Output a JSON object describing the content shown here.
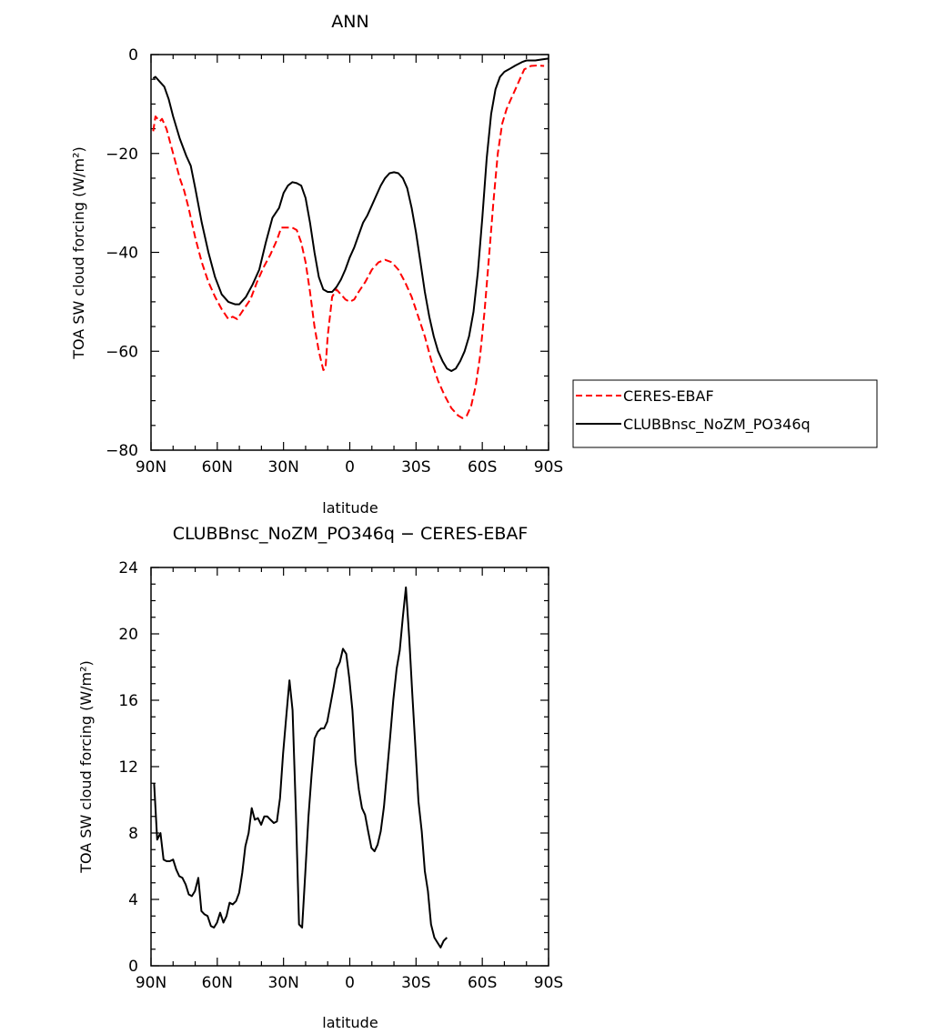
{
  "chart_data": [
    {
      "type": "line",
      "title": "ANN",
      "xlabel": "latitude",
      "ylabel": "TOA SW cloud forcing (W/m²)",
      "xlim": [
        90,
        -90
      ],
      "ylim": [
        -80,
        0
      ],
      "x_tick_values": [
        90,
        60,
        30,
        0,
        -30,
        -60,
        -90
      ],
      "x_tick_labels": [
        "90N",
        "60N",
        "30N",
        "0",
        "30S",
        "60S",
        "90S"
      ],
      "y_ticks": [
        0,
        -20,
        -40,
        -60,
        -80
      ],
      "y_tick_labels": [
        "0",
        "−20",
        "−40",
        "−60",
        "−80"
      ],
      "legend_position": "right",
      "series": [
        {
          "name": "CERES-EBAF",
          "color": "#ff0000",
          "dash": "dashed",
          "points": [
            [
              89,
              -15.5
            ],
            [
              88,
              -12.5
            ],
            [
              86,
              -13.5
            ],
            [
              85,
              -13
            ],
            [
              83,
              -15
            ],
            [
              80,
              -20
            ],
            [
              77,
              -25
            ],
            [
              75,
              -27.5
            ],
            [
              73,
              -31
            ],
            [
              70,
              -37
            ],
            [
              67,
              -42
            ],
            [
              64,
              -46
            ],
            [
              61,
              -49
            ],
            [
              58,
              -51.5
            ],
            [
              55,
              -53.5
            ],
            [
              53,
              -53
            ],
            [
              51,
              -53.5
            ],
            [
              48,
              -51.5
            ],
            [
              45,
              -49.5
            ],
            [
              42,
              -46
            ],
            [
              39,
              -43
            ],
            [
              36,
              -40.5
            ],
            [
              33,
              -37.5
            ],
            [
              31,
              -35
            ],
            [
              28,
              -35
            ],
            [
              26,
              -35
            ],
            [
              24,
              -35.5
            ],
            [
              22,
              -38
            ],
            [
              20,
              -42
            ],
            [
              18,
              -48
            ],
            [
              16,
              -55
            ],
            [
              14,
              -60
            ],
            [
              12,
              -63.8
            ],
            [
              11,
              -63.5
            ],
            [
              10,
              -57
            ],
            [
              8,
              -49
            ],
            [
              6,
              -47.5
            ],
            [
              4,
              -48.5
            ],
            [
              2,
              -49.5
            ],
            [
              0,
              -50
            ],
            [
              -2,
              -49.5
            ],
            [
              -4,
              -48
            ],
            [
              -7,
              -46
            ],
            [
              -10,
              -43.5
            ],
            [
              -13,
              -42
            ],
            [
              -16,
              -41.5
            ],
            [
              -19,
              -42
            ],
            [
              -22,
              -43.5
            ],
            [
              -25,
              -46
            ],
            [
              -28,
              -49
            ],
            [
              -31,
              -53
            ],
            [
              -34,
              -57
            ],
            [
              -37,
              -62
            ],
            [
              -40,
              -66
            ],
            [
              -43,
              -69
            ],
            [
              -46,
              -71.5
            ],
            [
              -49,
              -73
            ],
            [
              -51,
              -73.5
            ],
            [
              -53,
              -73
            ],
            [
              -55,
              -71
            ],
            [
              -57,
              -67
            ],
            [
              -59,
              -61
            ],
            [
              -61,
              -52
            ],
            [
              -63,
              -41
            ],
            [
              -65,
              -30
            ],
            [
              -67,
              -20
            ],
            [
              -69,
              -14
            ],
            [
              -71,
              -11
            ],
            [
              -73,
              -9
            ],
            [
              -75,
              -7
            ],
            [
              -77,
              -5
            ],
            [
              -79,
              -3
            ],
            [
              -82,
              -2.3
            ],
            [
              -85,
              -2.2
            ],
            [
              -88,
              -2.3
            ]
          ]
        },
        {
          "name": "CLUBBnsc_NoZM_PO346q",
          "color": "#000000",
          "dash": "solid",
          "points": [
            [
              89,
              -4.8
            ],
            [
              88,
              -4.5
            ],
            [
              86,
              -5.5
            ],
            [
              84,
              -6.5
            ],
            [
              82,
              -9
            ],
            [
              80,
              -12.5
            ],
            [
              77,
              -17
            ],
            [
              74,
              -20.5
            ],
            [
              72,
              -22.5
            ],
            [
              70,
              -27
            ],
            [
              67,
              -34
            ],
            [
              64,
              -40
            ],
            [
              61,
              -45
            ],
            [
              58,
              -48.5
            ],
            [
              55,
              -50
            ],
            [
              52,
              -50.5
            ],
            [
              50,
              -50.5
            ],
            [
              47,
              -49
            ],
            [
              44,
              -46.5
            ],
            [
              41,
              -43.5
            ],
            [
              38,
              -38
            ],
            [
              35,
              -33
            ],
            [
              32,
              -31
            ],
            [
              30,
              -28
            ],
            [
              28,
              -26.5
            ],
            [
              26,
              -25.8
            ],
            [
              24,
              -26
            ],
            [
              22,
              -26.5
            ],
            [
              20,
              -29
            ],
            [
              18,
              -34
            ],
            [
              16,
              -40
            ],
            [
              14,
              -45
            ],
            [
              12,
              -47.5
            ],
            [
              10,
              -48
            ],
            [
              8,
              -48
            ],
            [
              6,
              -47
            ],
            [
              4,
              -45.5
            ],
            [
              2,
              -43.5
            ],
            [
              0,
              -41
            ],
            [
              -2,
              -39
            ],
            [
              -4,
              -36.5
            ],
            [
              -6,
              -34
            ],
            [
              -8,
              -32.5
            ],
            [
              -10,
              -30.5
            ],
            [
              -12,
              -28.5
            ],
            [
              -14,
              -26.5
            ],
            [
              -16,
              -25
            ],
            [
              -18,
              -24
            ],
            [
              -20,
              -23.8
            ],
            [
              -22,
              -24
            ],
            [
              -24,
              -25
            ],
            [
              -26,
              -27
            ],
            [
              -28,
              -31
            ],
            [
              -30,
              -36
            ],
            [
              -32,
              -42
            ],
            [
              -34,
              -48
            ],
            [
              -36,
              -53
            ],
            [
              -38,
              -57
            ],
            [
              -40,
              -60
            ],
            [
              -42,
              -62
            ],
            [
              -44,
              -63.5
            ],
            [
              -46,
              -64
            ],
            [
              -48,
              -63.5
            ],
            [
              -50,
              -62
            ],
            [
              -52,
              -60
            ],
            [
              -54,
              -57
            ],
            [
              -56,
              -52
            ],
            [
              -58,
              -44
            ],
            [
              -60,
              -33
            ],
            [
              -62,
              -21
            ],
            [
              -64,
              -12
            ],
            [
              -66,
              -7
            ],
            [
              -68,
              -4.5
            ],
            [
              -70,
              -3.5
            ],
            [
              -72,
              -3
            ],
            [
              -75,
              -2.2
            ],
            [
              -78,
              -1.5
            ],
            [
              -80,
              -1.2
            ],
            [
              -84,
              -1.2
            ],
            [
              -87,
              -1
            ],
            [
              -90,
              -0.8
            ]
          ]
        }
      ]
    },
    {
      "type": "line",
      "title": "CLUBBnsc_NoZM_PO346q − CERES-EBAF",
      "xlabel": "latitude",
      "ylabel": "TOA SW cloud forcing (W/m²)",
      "xlim": [
        90,
        -90
      ],
      "ylim": [
        0,
        24
      ],
      "x_tick_values": [
        90,
        60,
        30,
        0,
        -30,
        -60,
        -90
      ],
      "x_tick_labels": [
        "90N",
        "60N",
        "30N",
        "0",
        "30S",
        "60S",
        "90S"
      ],
      "y_ticks": [
        0,
        4,
        8,
        12,
        16,
        20,
        24
      ],
      "y_tick_labels": [
        "0",
        "4",
        "8",
        "12",
        "16",
        "20",
        "24"
      ],
      "series": [
        {
          "color": "#000000",
          "dash": "solid",
          "points": [
            [
              88.6,
              11
            ],
            [
              87.2,
              7.6
            ],
            [
              85.7,
              8
            ],
            [
              84.3,
              6.4
            ],
            [
              82.9,
              6.3
            ],
            [
              81.5,
              6.3
            ],
            [
              80.0,
              6.4
            ],
            [
              78.6,
              5.8
            ],
            [
              77.2,
              5.4
            ],
            [
              75.8,
              5.3
            ],
            [
              74.3,
              4.9
            ],
            [
              72.9,
              4.3
            ],
            [
              71.5,
              4.2
            ],
            [
              70.1,
              4.5
            ],
            [
              68.6,
              5.3
            ],
            [
              67.2,
              3.3
            ],
            [
              65.8,
              3.1
            ],
            [
              64.4,
              3.0
            ],
            [
              62.9,
              2.4
            ],
            [
              61.5,
              2.3
            ],
            [
              60.1,
              2.6
            ],
            [
              58.7,
              3.2
            ],
            [
              57.2,
              2.6
            ],
            [
              55.8,
              3.0
            ],
            [
              54.4,
              3.8
            ],
            [
              53.0,
              3.7
            ],
            [
              51.5,
              3.9
            ],
            [
              50.1,
              4.4
            ],
            [
              48.7,
              5.6
            ],
            [
              47.3,
              7.2
            ],
            [
              45.8,
              8.0
            ],
            [
              44.4,
              9.5
            ],
            [
              43.0,
              8.8
            ],
            [
              41.6,
              8.9
            ],
            [
              40.1,
              8.5
            ],
            [
              38.7,
              9.0
            ],
            [
              37.3,
              9.0
            ],
            [
              35.9,
              8.8
            ],
            [
              34.4,
              8.6
            ],
            [
              33.0,
              8.7
            ],
            [
              31.6,
              10.1
            ],
            [
              30.2,
              12.8
            ],
            [
              28.7,
              15.1
            ],
            [
              27.3,
              17.2
            ],
            [
              25.9,
              15.4
            ],
            [
              24.4,
              9.2
            ],
            [
              23.0,
              2.5
            ],
            [
              21.6,
              2.3
            ],
            [
              20.2,
              5.5
            ],
            [
              18.7,
              9.0
            ],
            [
              17.3,
              11.5
            ],
            [
              15.9,
              13.7
            ],
            [
              14.5,
              14.1
            ],
            [
              13.0,
              14.3
            ],
            [
              11.6,
              14.3
            ],
            [
              10.2,
              14.7
            ],
            [
              8.8,
              15.7
            ],
            [
              7.3,
              16.8
            ],
            [
              5.9,
              17.9
            ],
            [
              4.5,
              18.3
            ],
            [
              3.1,
              19.1
            ],
            [
              1.6,
              18.8
            ],
            [
              0.2,
              17.3
            ],
            [
              -1.2,
              15.4
            ],
            [
              -2.6,
              12.3
            ],
            [
              -4.1,
              10.6
            ],
            [
              -5.5,
              9.5
            ],
            [
              -6.9,
              9.1
            ],
            [
              -8.3,
              8.1
            ],
            [
              -9.8,
              7.1
            ],
            [
              -11.2,
              6.9
            ],
            [
              -12.6,
              7.3
            ],
            [
              -14.0,
              8.1
            ],
            [
              -15.5,
              9.6
            ],
            [
              -16.9,
              11.7
            ],
            [
              -18.3,
              13.8
            ],
            [
              -19.7,
              16.0
            ],
            [
              -21.2,
              17.9
            ],
            [
              -22.6,
              19.0
            ],
            [
              -24.0,
              21.0
            ],
            [
              -25.4,
              22.8
            ],
            [
              -26.9,
              19.8
            ],
            [
              -28.3,
              16.4
            ],
            [
              -29.7,
              13.2
            ],
            [
              -31.1,
              9.9
            ],
            [
              -32.6,
              8.1
            ],
            [
              -34.0,
              5.7
            ],
            [
              -35.4,
              4.5
            ],
            [
              -36.8,
              2.5
            ],
            [
              -38.3,
              1.7
            ],
            [
              -39.7,
              1.4
            ],
            [
              -41.1,
              1.1
            ],
            [
              -42.5,
              1.5
            ],
            [
              -44.0,
              1.7
            ]
          ]
        }
      ]
    }
  ]
}
